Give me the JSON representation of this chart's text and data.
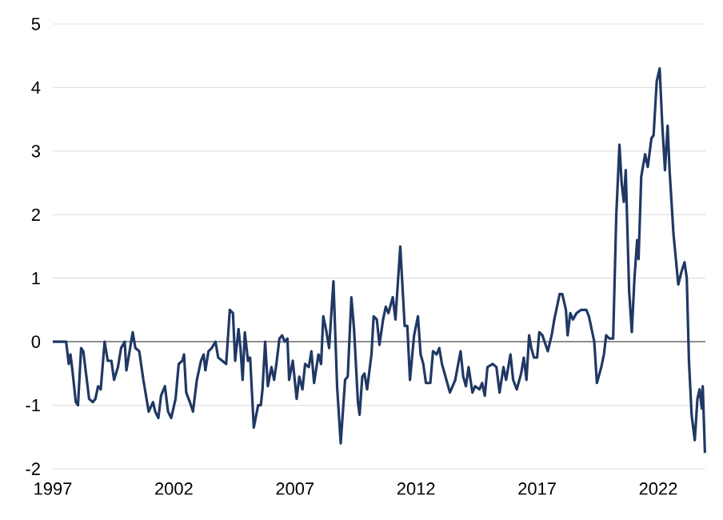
{
  "chart_data": {
    "type": "line",
    "xlim": [
      1997,
      2023.95
    ],
    "xticks": [
      1997,
      2002,
      2007,
      2012,
      2017,
      2022
    ],
    "ylim": [
      -2,
      5
    ],
    "yticks": [
      -2,
      -1,
      0,
      1,
      2,
      3,
      4,
      5
    ],
    "grid": "y",
    "marker": "none",
    "line_style": "solid",
    "ref_lines": [
      {
        "axis": "y",
        "value": 0,
        "color": "#808080"
      }
    ],
    "series": [
      {
        "color": "#203864",
        "x": [
          1997.0,
          1997.55,
          1997.66,
          1997.73,
          1997.81,
          1997.95,
          1998.04,
          1998.17,
          1998.26,
          1998.5,
          1998.65,
          1998.76,
          1998.87,
          1998.98,
          1999.14,
          1999.27,
          1999.42,
          1999.53,
          1999.69,
          1999.82,
          1999.97,
          2000.04,
          2000.15,
          2000.3,
          2000.41,
          2000.57,
          2000.74,
          2000.96,
          2001.14,
          2001.23,
          2001.36,
          2001.47,
          2001.63,
          2001.76,
          2001.89,
          2002.07,
          2002.2,
          2002.35,
          2002.42,
          2002.51,
          2002.66,
          2002.79,
          2002.95,
          2003.12,
          2003.23,
          2003.3,
          2003.43,
          2003.56,
          2003.72,
          2003.83,
          2004.0,
          2004.16,
          2004.31,
          2004.44,
          2004.53,
          2004.67,
          2004.75,
          2004.84,
          2004.93,
          2005.06,
          2005.15,
          2005.3,
          2005.48,
          2005.59,
          2005.66,
          2005.77,
          2005.88,
          2006.03,
          2006.14,
          2006.25,
          2006.36,
          2006.47,
          2006.58,
          2006.69,
          2006.76,
          2006.91,
          2007.07,
          2007.18,
          2007.31,
          2007.42,
          2007.57,
          2007.68,
          2007.79,
          2007.97,
          2008.08,
          2008.17,
          2008.28,
          2008.41,
          2008.59,
          2008.74,
          2008.89,
          2009.07,
          2009.18,
          2009.33,
          2009.44,
          2009.6,
          2009.67,
          2009.78,
          2009.87,
          2009.98,
          2010.16,
          2010.25,
          2010.38,
          2010.49,
          2010.64,
          2010.75,
          2010.86,
          2011.04,
          2011.15,
          2011.35,
          2011.53,
          2011.64,
          2011.75,
          2011.92,
          2012.08,
          2012.19,
          2012.3,
          2012.41,
          2012.59,
          2012.7,
          2012.85,
          2012.96,
          2013.07,
          2013.29,
          2013.4,
          2013.62,
          2013.84,
          2013.95,
          2014.06,
          2014.17,
          2014.33,
          2014.44,
          2014.62,
          2014.73,
          2014.84,
          2014.95,
          2015.17,
          2015.32,
          2015.45,
          2015.61,
          2015.72,
          2015.9,
          2016.01,
          2016.16,
          2016.34,
          2016.45,
          2016.56,
          2016.67,
          2016.76,
          2016.87,
          2017.0,
          2017.09,
          2017.22,
          2017.44,
          2017.6,
          2017.71,
          2017.82,
          2017.93,
          2018.04,
          2018.19,
          2018.26,
          2018.37,
          2018.48,
          2018.63,
          2018.81,
          2019.03,
          2019.14,
          2019.25,
          2019.36,
          2019.47,
          2019.65,
          2019.76,
          2019.85,
          2019.98,
          2020.14,
          2020.27,
          2020.4,
          2020.49,
          2020.58,
          2020.66,
          2020.8,
          2020.91,
          2021.02,
          2021.13,
          2021.19,
          2021.3,
          2021.46,
          2021.57,
          2021.72,
          2021.81,
          2021.94,
          2022.06,
          2022.17,
          2022.28,
          2022.39,
          2022.47,
          2022.63,
          2022.83,
          2022.96,
          2023.09,
          2023.18,
          2023.27,
          2023.38,
          2023.51,
          2023.62,
          2023.71,
          2023.8,
          2023.84,
          2023.93
        ],
        "values": [
          0,
          0,
          -0.35,
          -0.2,
          -0.45,
          -0.95,
          -1.0,
          -0.1,
          -0.15,
          -0.9,
          -0.95,
          -0.9,
          -0.7,
          -0.75,
          0.0,
          -0.3,
          -0.3,
          -0.6,
          -0.4,
          -0.1,
          0.0,
          -0.45,
          -0.2,
          0.15,
          -0.1,
          -0.15,
          -0.6,
          -1.1,
          -0.95,
          -1.1,
          -1.2,
          -0.85,
          -0.7,
          -1.1,
          -1.2,
          -0.9,
          -0.35,
          -0.3,
          -0.2,
          -0.8,
          -0.95,
          -1.1,
          -0.6,
          -0.3,
          -0.2,
          -0.45,
          -0.15,
          -0.1,
          0.0,
          -0.25,
          -0.3,
          -0.35,
          0.5,
          0.45,
          -0.3,
          0.2,
          -0.1,
          -0.6,
          0.15,
          -0.3,
          -0.25,
          -1.35,
          -1.0,
          -1.0,
          -0.75,
          0.0,
          -0.7,
          -0.4,
          -0.6,
          -0.3,
          0.05,
          0.1,
          0.0,
          0.05,
          -0.6,
          -0.3,
          -0.9,
          -0.55,
          -0.75,
          -0.35,
          -0.4,
          -0.15,
          -0.65,
          -0.2,
          -0.35,
          0.4,
          0.2,
          -0.1,
          0.95,
          -0.7,
          -1.6,
          -0.6,
          -0.55,
          0.7,
          0.2,
          -0.95,
          -1.15,
          -0.55,
          -0.5,
          -0.75,
          -0.2,
          0.4,
          0.35,
          -0.05,
          0.35,
          0.55,
          0.45,
          0.7,
          0.35,
          1.5,
          0.25,
          0.25,
          -0.6,
          0.1,
          0.4,
          -0.2,
          -0.35,
          -0.65,
          -0.65,
          -0.15,
          -0.2,
          -0.1,
          -0.35,
          -0.65,
          -0.8,
          -0.6,
          -0.15,
          -0.55,
          -0.7,
          -0.4,
          -0.8,
          -0.7,
          -0.75,
          -0.65,
          -0.85,
          -0.4,
          -0.35,
          -0.4,
          -0.8,
          -0.4,
          -0.6,
          -0.2,
          -0.6,
          -0.75,
          -0.5,
          -0.25,
          -0.6,
          0.1,
          -0.1,
          -0.25,
          -0.25,
          0.15,
          0.1,
          -0.15,
          0.1,
          0.35,
          0.55,
          0.75,
          0.75,
          0.5,
          0.1,
          0.45,
          0.35,
          0.45,
          0.5,
          0.5,
          0.4,
          0.2,
          0.0,
          -0.65,
          -0.4,
          -0.2,
          0.1,
          0.05,
          0.05,
          2.0,
          3.1,
          2.5,
          2.2,
          2.7,
          0.8,
          0.15,
          1.0,
          1.6,
          1.3,
          2.6,
          2.95,
          2.75,
          3.2,
          3.25,
          4.1,
          4.3,
          3.4,
          2.7,
          3.4,
          2.7,
          1.7,
          0.9,
          1.1,
          1.25,
          1.0,
          -0.3,
          -1.15,
          -1.55,
          -0.9,
          -0.75,
          -1.05,
          -0.7,
          -1.75
        ]
      }
    ]
  }
}
